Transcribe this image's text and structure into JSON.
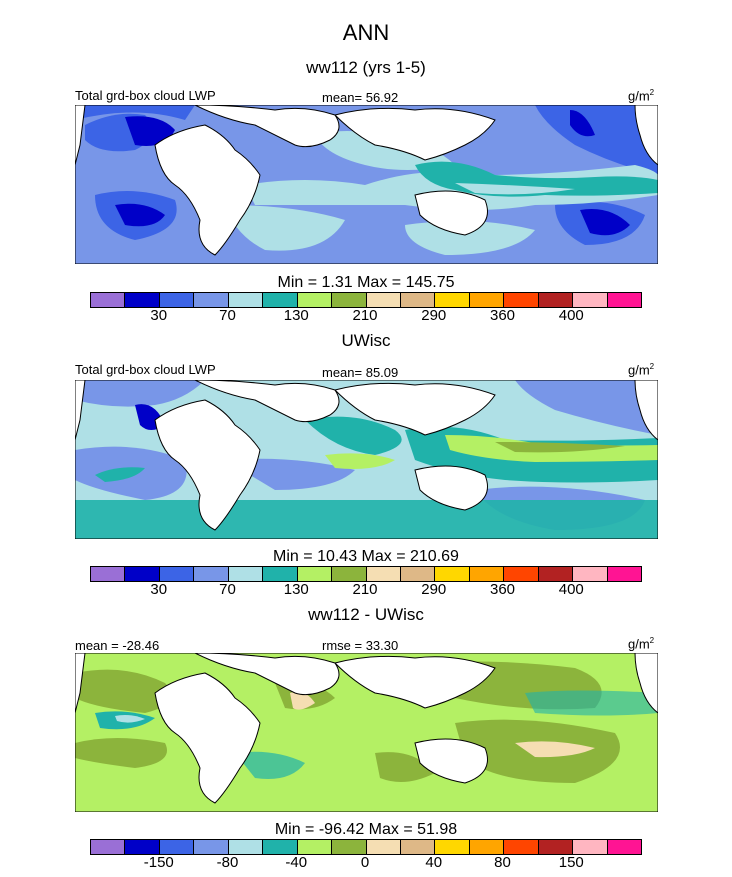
{
  "header": {
    "title": "ANN"
  },
  "chart_data": [
    {
      "type": "heatmap",
      "title": "ww112 (yrs 1-5)",
      "variable": "Total grd-box cloud LWP",
      "mean_label": "mean=  56.92",
      "units": "g/m",
      "units_sup": "2",
      "minmax": "Min =   1.31 Max = 145.75",
      "min": 1.31,
      "max": 145.75,
      "colorbar_ticks": [
        "30",
        "70",
        "130",
        "210",
        "290",
        "360",
        "400"
      ],
      "colorbar_colors": [
        "#9a6fd6",
        "#0000c8",
        "#3c64e6",
        "#7896e8",
        "#afe0e6",
        "#20b2aa",
        "#b4f064",
        "#8cb43c",
        "#f5deb3",
        "#deb887",
        "#ffd700",
        "#ffa500",
        "#ff4500",
        "#b22222",
        "#ffb6c1",
        "#ff1493"
      ]
    },
    {
      "type": "heatmap",
      "title": "UWisc",
      "variable": "Total grd-box cloud LWP",
      "mean_label": "mean=  85.09",
      "units": "g/m",
      "units_sup": "2",
      "minmax": "Min =  10.43 Max = 210.69",
      "min": 10.43,
      "max": 210.69,
      "colorbar_ticks": [
        "30",
        "70",
        "130",
        "210",
        "290",
        "360",
        "400"
      ],
      "colorbar_colors": [
        "#9a6fd6",
        "#0000c8",
        "#3c64e6",
        "#7896e8",
        "#afe0e6",
        "#20b2aa",
        "#b4f064",
        "#8cb43c",
        "#f5deb3",
        "#deb887",
        "#ffd700",
        "#ffa500",
        "#ff4500",
        "#b22222",
        "#ffb6c1",
        "#ff1493"
      ]
    },
    {
      "type": "heatmap",
      "title": "ww112 - UWisc",
      "variable": "",
      "mean_label": "mean = -28.46",
      "rmse_label": "rmse =  33.30",
      "units": "g/m",
      "units_sup": "2",
      "minmax": "Min = -96.42 Max =  51.98",
      "min": -96.42,
      "max": 51.98,
      "colorbar_ticks": [
        "-150",
        "-80",
        "-40",
        "0",
        "40",
        "80",
        "150"
      ],
      "colorbar_colors": [
        "#9a6fd6",
        "#0000c8",
        "#3c64e6",
        "#7896e8",
        "#afe0e6",
        "#20b2aa",
        "#b4f064",
        "#8cb43c",
        "#f5deb3",
        "#deb887",
        "#ffd700",
        "#ffa500",
        "#ff4500",
        "#b22222",
        "#ffb6c1",
        "#ff1493"
      ]
    }
  ]
}
